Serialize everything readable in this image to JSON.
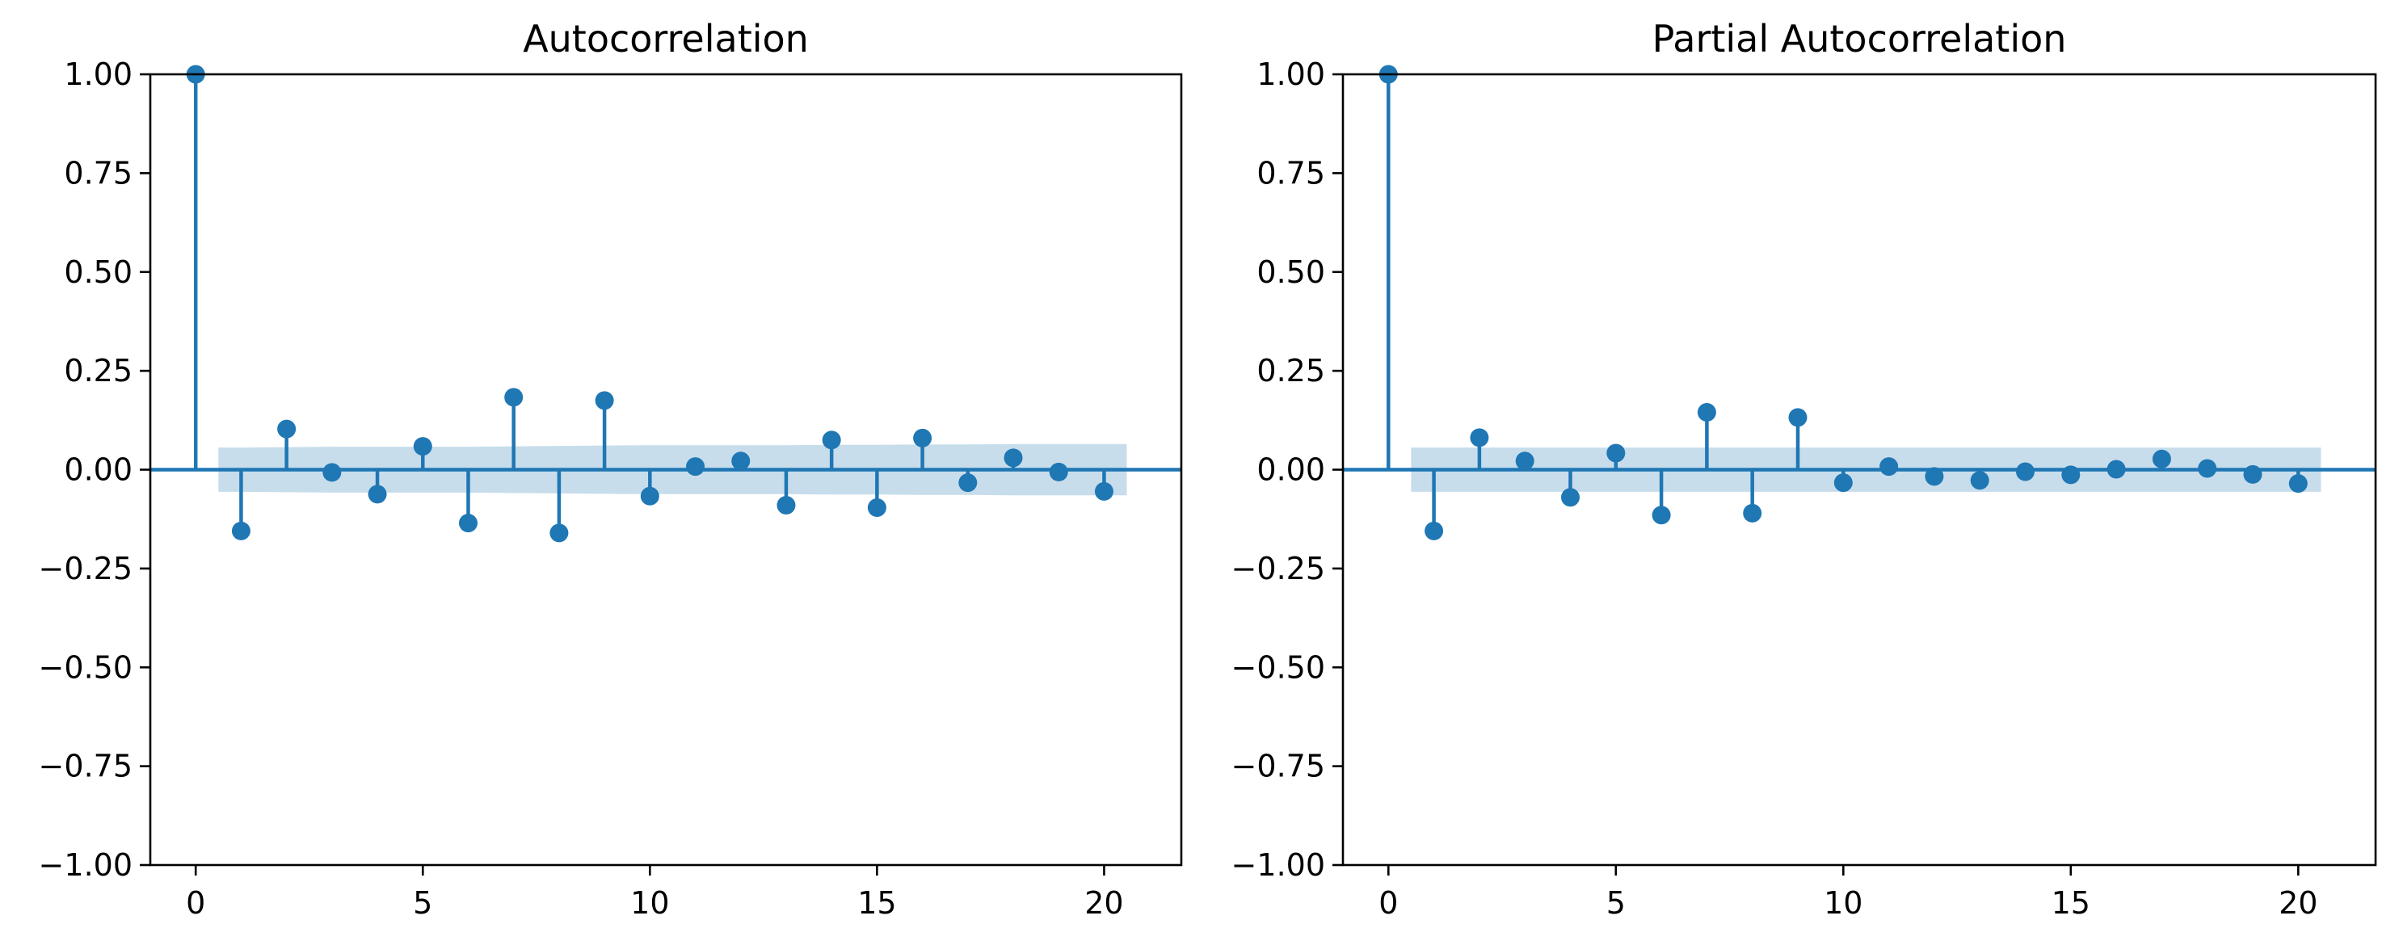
{
  "colors": {
    "marker": "#1f77b4",
    "band": "#1f77b4",
    "band_opacity": 0.25,
    "axes": "#000000",
    "background": "#ffffff"
  },
  "chart_data": [
    {
      "type": "stem",
      "title": "Autocorrelation",
      "xlabel": "",
      "ylabel": "",
      "xlim": [
        -1,
        21.7
      ],
      "ylim": [
        -1.0,
        1.0
      ],
      "x_ticks": [
        0,
        5,
        10,
        15,
        20
      ],
      "x_tick_labels": [
        "0",
        "5",
        "10",
        "15",
        "20"
      ],
      "y_ticks": [
        1.0,
        0.75,
        0.5,
        0.25,
        0.0,
        -0.25,
        -0.5,
        -0.75,
        -1.0
      ],
      "y_tick_labels": [
        "1.00",
        "0.75",
        "0.50",
        "0.25",
        "0.00",
        "−0.25",
        "−0.50",
        "−0.75",
        "−1.00"
      ],
      "baseline": 0,
      "grid": false,
      "lags": [
        0,
        1,
        2,
        3,
        4,
        5,
        6,
        7,
        8,
        9,
        10,
        11,
        12,
        13,
        14,
        15,
        16,
        17,
        18,
        19,
        20
      ],
      "values": [
        1.0,
        -0.155,
        0.103,
        -0.007,
        -0.062,
        0.059,
        -0.135,
        0.183,
        -0.16,
        0.175,
        -0.067,
        0.008,
        0.022,
        -0.09,
        0.075,
        -0.096,
        0.08,
        -0.033,
        0.03,
        -0.006,
        -0.055
      ],
      "confidence_band": {
        "lags": [
          0.5,
          1,
          2,
          3,
          4,
          5,
          6,
          7,
          8,
          9,
          10,
          11,
          12,
          13,
          14,
          15,
          16,
          17,
          18,
          19,
          20,
          20.5
        ],
        "upper": [
          0.056,
          0.056,
          0.057,
          0.058,
          0.058,
          0.058,
          0.058,
          0.059,
          0.06,
          0.061,
          0.062,
          0.062,
          0.062,
          0.062,
          0.063,
          0.063,
          0.064,
          0.064,
          0.065,
          0.065,
          0.065,
          0.065
        ]
      }
    },
    {
      "type": "stem",
      "title": "Partial Autocorrelation",
      "xlabel": "",
      "ylabel": "",
      "xlim": [
        -1,
        21.7
      ],
      "ylim": [
        -1.0,
        1.0
      ],
      "x_ticks": [
        0,
        5,
        10,
        15,
        20
      ],
      "x_tick_labels": [
        "0",
        "5",
        "10",
        "15",
        "20"
      ],
      "y_ticks": [
        1.0,
        0.75,
        0.5,
        0.25,
        0.0,
        -0.25,
        -0.5,
        -0.75,
        -1.0
      ],
      "y_tick_labels": [
        "1.00",
        "0.75",
        "0.50",
        "0.25",
        "0.00",
        "−0.25",
        "−0.50",
        "−0.75",
        "−1.00"
      ],
      "baseline": 0,
      "grid": false,
      "lags": [
        0,
        1,
        2,
        3,
        4,
        5,
        6,
        7,
        8,
        9,
        10,
        11,
        12,
        13,
        14,
        15,
        16,
        17,
        18,
        19,
        20
      ],
      "values": [
        1.0,
        -0.155,
        0.081,
        0.022,
        -0.07,
        0.042,
        -0.115,
        0.145,
        -0.11,
        0.132,
        -0.033,
        0.008,
        -0.017,
        -0.027,
        -0.005,
        -0.013,
        0.001,
        0.027,
        0.003,
        -0.012,
        -0.035
      ],
      "confidence_band": {
        "lags": [
          0.5,
          20.5
        ],
        "upper": [
          0.056,
          0.056
        ]
      }
    }
  ]
}
